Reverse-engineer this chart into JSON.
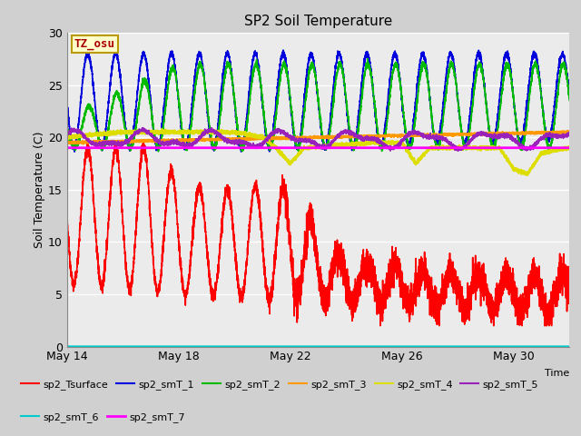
{
  "title": "SP2 Soil Temperature",
  "ylabel": "Soil Temperature (C)",
  "xlabel_right": "Time",
  "ylim": [
    0,
    30
  ],
  "yticks": [
    0,
    5,
    10,
    15,
    20,
    25,
    30
  ],
  "xtick_labels": [
    "May 14",
    "May 18",
    "May 22",
    "May 26",
    "May 30"
  ],
  "xtick_positions": [
    0,
    4,
    8,
    12,
    16
  ],
  "fig_bg": "#d0d0d0",
  "plot_bg": "#ebebeb",
  "grid_color": "#ffffff",
  "annotation_text": "TZ_osu",
  "annotation_bg": "#ffffcc",
  "annotation_border": "#bb9900",
  "annotation_text_color": "#aa0000",
  "colors": {
    "sp2_Tsurface": "#ff0000",
    "sp2_smT_1": "#0000dd",
    "sp2_smT_2": "#00bb00",
    "sp2_smT_3": "#ff9900",
    "sp2_smT_4": "#dddd00",
    "sp2_smT_5": "#9922bb",
    "sp2_smT_6": "#00cccc",
    "sp2_smT_7": "#ff00ff"
  },
  "n_days": 18,
  "pts_per_day": 288
}
